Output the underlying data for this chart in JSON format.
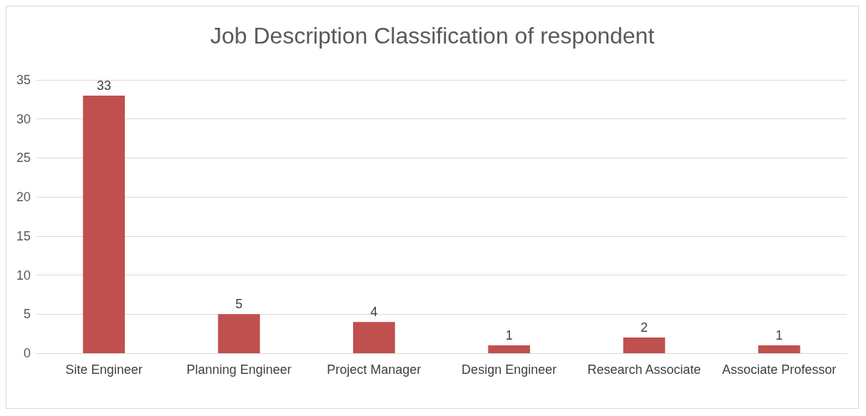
{
  "chart_data": {
    "type": "bar",
    "title": "Job Description Classification of respondent",
    "categories": [
      "Site Engineer",
      "Planning Engineer",
      "Project Manager",
      "Design Engineer",
      "Research Associate",
      "Associate Professor"
    ],
    "values": [
      33,
      5,
      4,
      1,
      2,
      1
    ],
    "color": "#c0504d",
    "ylim": [
      0,
      35
    ],
    "yticks": [
      0,
      5,
      10,
      15,
      20,
      25,
      30,
      35
    ],
    "grid": "y",
    "data_labels": true
  }
}
